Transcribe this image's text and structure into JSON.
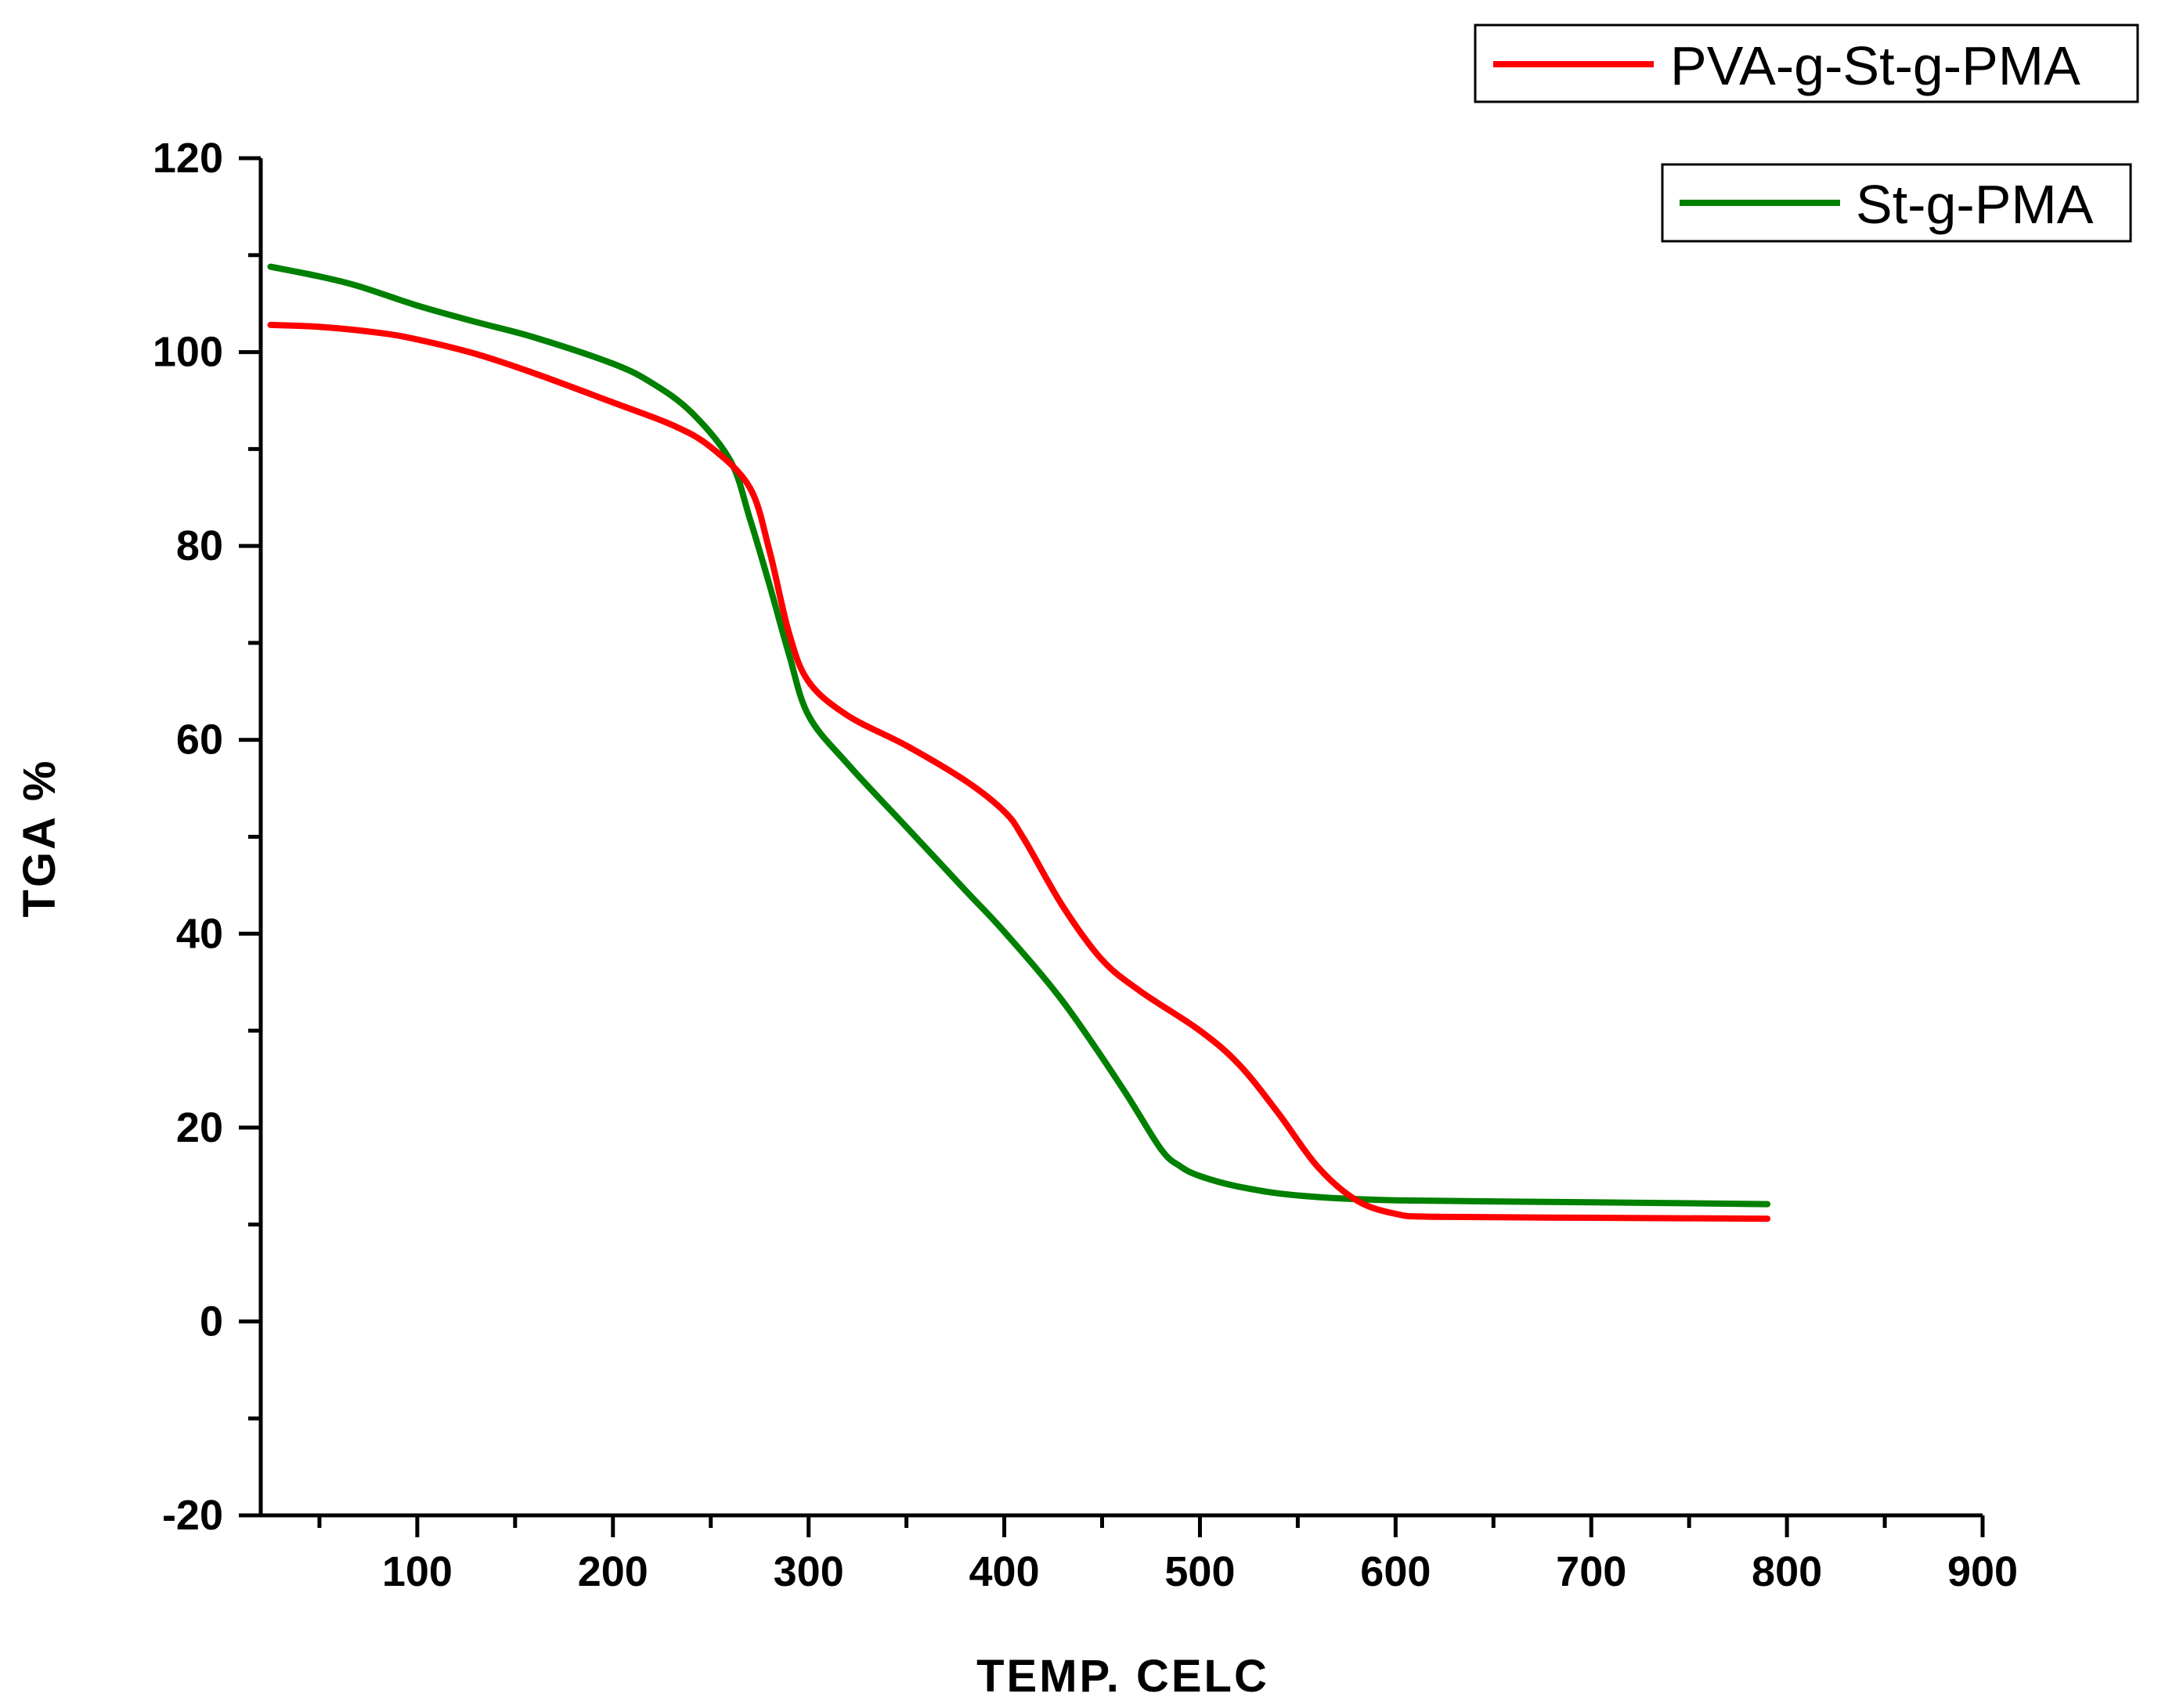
{
  "chart_data": {
    "type": "line",
    "title": "",
    "xlabel": "TEMP. CELC",
    "ylabel": "TGA %",
    "xlim": [
      20,
      900
    ],
    "ylim": [
      -20,
      120
    ],
    "x_ticks": [
      100,
      200,
      300,
      400,
      500,
      600,
      700,
      800,
      900
    ],
    "y_ticks": [
      -20,
      0,
      20,
      40,
      60,
      80,
      100,
      120
    ],
    "x_tick_labels": [
      "100",
      "200",
      "300",
      "400",
      "500",
      "600",
      "700",
      "800",
      "900"
    ],
    "y_tick_labels": [
      "-20",
      "0",
      "20",
      "40",
      "60",
      "80",
      "100",
      "120"
    ],
    "grid": false,
    "series": [
      {
        "name": "PVA-g-St-g-PMA",
        "color": "#ff0000",
        "x": [
          25,
          50,
          80,
          100,
          130,
          160,
          200,
          230,
          250,
          270,
          280,
          290,
          300,
          320,
          350,
          380,
          400,
          410,
          430,
          450,
          470,
          500,
          520,
          540,
          560,
          580,
          600,
          620,
          700,
          790
        ],
        "y": [
          102.8,
          102.6,
          102.0,
          101.3,
          99.8,
          97.8,
          94.8,
          92.5,
          90.2,
          86.0,
          79.5,
          71.0,
          66.0,
          62.5,
          59.4,
          55.8,
          52.6,
          49.8,
          42.8,
          37.3,
          34.0,
          30.0,
          26.5,
          21.5,
          16.0,
          12.5,
          11.1,
          10.8,
          10.7,
          10.6
        ]
      },
      {
        "name": "St-g-PMA",
        "color": "#008000",
        "x": [
          25,
          50,
          70,
          100,
          130,
          160,
          200,
          220,
          240,
          260,
          270,
          280,
          290,
          300,
          320,
          350,
          380,
          400,
          430,
          460,
          480,
          490,
          500,
          520,
          550,
          600,
          700,
          790
        ],
        "y": [
          108.8,
          107.8,
          106.8,
          104.8,
          103.1,
          101.5,
          98.8,
          96.8,
          93.8,
          88.8,
          82.8,
          76.0,
          68.8,
          62.5,
          57.5,
          51.0,
          44.5,
          40.2,
          33.0,
          24.2,
          17.8,
          16.0,
          15.0,
          13.9,
          13.0,
          12.5,
          12.3,
          12.1
        ]
      }
    ],
    "legend": [
      {
        "label": "PVA-g-St-g-PMA",
        "color": "#ff0000",
        "placement": "top-right"
      },
      {
        "label": "St-g-PMA",
        "color": "#008000",
        "placement": "top-right"
      }
    ]
  }
}
